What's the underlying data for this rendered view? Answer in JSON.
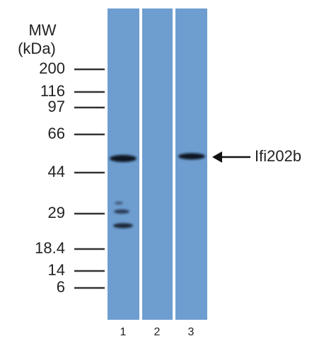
{
  "markers": {
    "title": "MW",
    "unit": "(kDa)",
    "labels": [
      "200",
      "116",
      "97",
      "66",
      "44",
      "29",
      "18.4",
      "14",
      "6"
    ]
  },
  "lanes": [
    "1",
    "2",
    "3"
  ],
  "band_label": "Ifi202b"
}
